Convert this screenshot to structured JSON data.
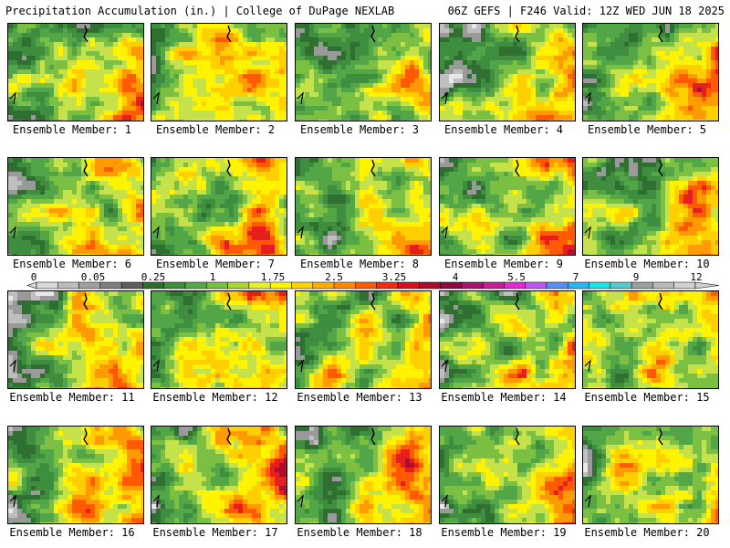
{
  "header": {
    "left_title": "Precipitation Accumulation (in.) | College of DuPage NEXLAB",
    "right_title": "06Z GEFS | F246 Valid: 12Z WED JUN 18 2025"
  },
  "panel_label_prefix": "Ensemble Member:",
  "members": [
    1,
    2,
    3,
    4,
    5,
    6,
    7,
    8,
    9,
    10,
    11,
    12,
    13,
    14,
    15,
    16,
    17,
    18,
    19,
    20
  ],
  "colorbar": {
    "tick_labels": [
      "0",
      "0.05",
      "0.25",
      "1",
      "1.75",
      "2.5",
      "3.25",
      "4",
      "5.5",
      "7",
      "9",
      "12"
    ],
    "colors": [
      "#d9d9d9",
      "#bdbdbd",
      "#a0a0a0",
      "#7f7f7f",
      "#5e5e5e",
      "#2d6e2d",
      "#3f8f3f",
      "#56a84a",
      "#79c043",
      "#a8d533",
      "#e6f02a",
      "#fff500",
      "#ffd400",
      "#ffae00",
      "#ff8a00",
      "#ff5a00",
      "#f52a14",
      "#d90f1e",
      "#b00a2a",
      "#8c0a3c",
      "#a8146e",
      "#c81e96",
      "#e628d2",
      "#c056f0",
      "#5a8cf5",
      "#2ab4f0",
      "#18e6e6",
      "#5ac8c8",
      "#9aa0a0",
      "#b9b9b9",
      "#d0d0d0"
    ]
  }
}
